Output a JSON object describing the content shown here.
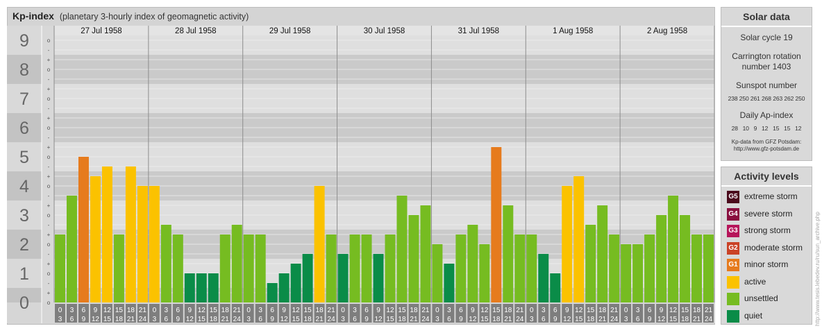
{
  "header": {
    "title": "Kp-index",
    "subtitle": "(planetary 3-hourly index of geomagnetic activity)"
  },
  "chart_data": {
    "type": "bar",
    "title": "Kp-index",
    "subtitle": "(planetary 3-hourly index of geomagnetic activity)",
    "ylim": [
      0,
      9
    ],
    "y_ticks": [
      "0",
      "1",
      "2",
      "3",
      "4",
      "5",
      "6",
      "7",
      "8",
      "9"
    ],
    "y_minor_ticks": [
      "+",
      "o",
      "-"
    ],
    "days": [
      "27 Jul 1958",
      "28 Jul 1958",
      "29 Jul 1958",
      "30 Jul 1958",
      "31 Jul 1958",
      "1 Aug 1958",
      "2 Aug 1958"
    ],
    "interval_start": [
      "0",
      "3",
      "6",
      "9",
      "12",
      "15",
      "18",
      "21"
    ],
    "interval_end": [
      "3",
      "6",
      "9",
      "12",
      "15",
      "18",
      "21",
      "24"
    ],
    "values": [
      2.333,
      3.667,
      5.0,
      4.333,
      4.667,
      2.333,
      4.667,
      4.0,
      4.0,
      2.667,
      2.333,
      1.0,
      1.0,
      1.0,
      2.333,
      2.667,
      2.333,
      2.333,
      0.667,
      1.0,
      1.333,
      1.667,
      4.0,
      2.333,
      1.667,
      2.333,
      2.333,
      1.667,
      2.333,
      3.667,
      3.0,
      3.333,
      2.0,
      1.333,
      2.333,
      2.667,
      2.0,
      5.333,
      3.333,
      2.333,
      2.333,
      1.667,
      1.0,
      4.0,
      4.333,
      2.667,
      3.333,
      2.333,
      2.0,
      2.0,
      2.333,
      3.0,
      3.667,
      3.0,
      2.333,
      2.333
    ],
    "grid": true,
    "legend_placement": "right"
  },
  "colors": {
    "quiet": "#0a8c48",
    "unsettled": "#76bc21",
    "active": "#fbc200",
    "G1": "#e67b1d",
    "G2": "#ca4226",
    "G3": "#b6155a",
    "G4": "#8a0f3f",
    "G5": "#4b0a1c"
  },
  "solar": {
    "title": "Solar data",
    "cycle": "Solar cycle 19",
    "carrington_line1": "Carrington rotation",
    "carrington_line2": "number 1403",
    "sunspot_label": "Sunspot number",
    "sunspot_values": "238 250 261 268 263 262 250",
    "ap_label": "Daily Ap-index",
    "ap_values": "28   10   9   12   15   15   12",
    "source_line1": "Kp-data from GFZ Potsdam:",
    "source_line2": "http://www.gfz-potsdam.de"
  },
  "activity": {
    "title": "Activity levels",
    "items": [
      {
        "code": "G5",
        "label": "extreme storm",
        "color": "#4b0a1c"
      },
      {
        "code": "G4",
        "label": "severe storm",
        "color": "#8a0f3f"
      },
      {
        "code": "G3",
        "label": "strong storm",
        "color": "#b6155a"
      },
      {
        "code": "G2",
        "label": "moderate storm",
        "color": "#ca4226"
      },
      {
        "code": "G1",
        "label": "minor storm",
        "color": "#e67b1d"
      },
      {
        "code": "",
        "label": "active",
        "color": "#fbc200"
      },
      {
        "code": "",
        "label": "unsettled",
        "color": "#76bc21"
      },
      {
        "code": "",
        "label": "quiet",
        "color": "#0a8c48"
      }
    ]
  },
  "credit": "http://www.tesis.lebedev.ru/ru/sun_archive.php"
}
